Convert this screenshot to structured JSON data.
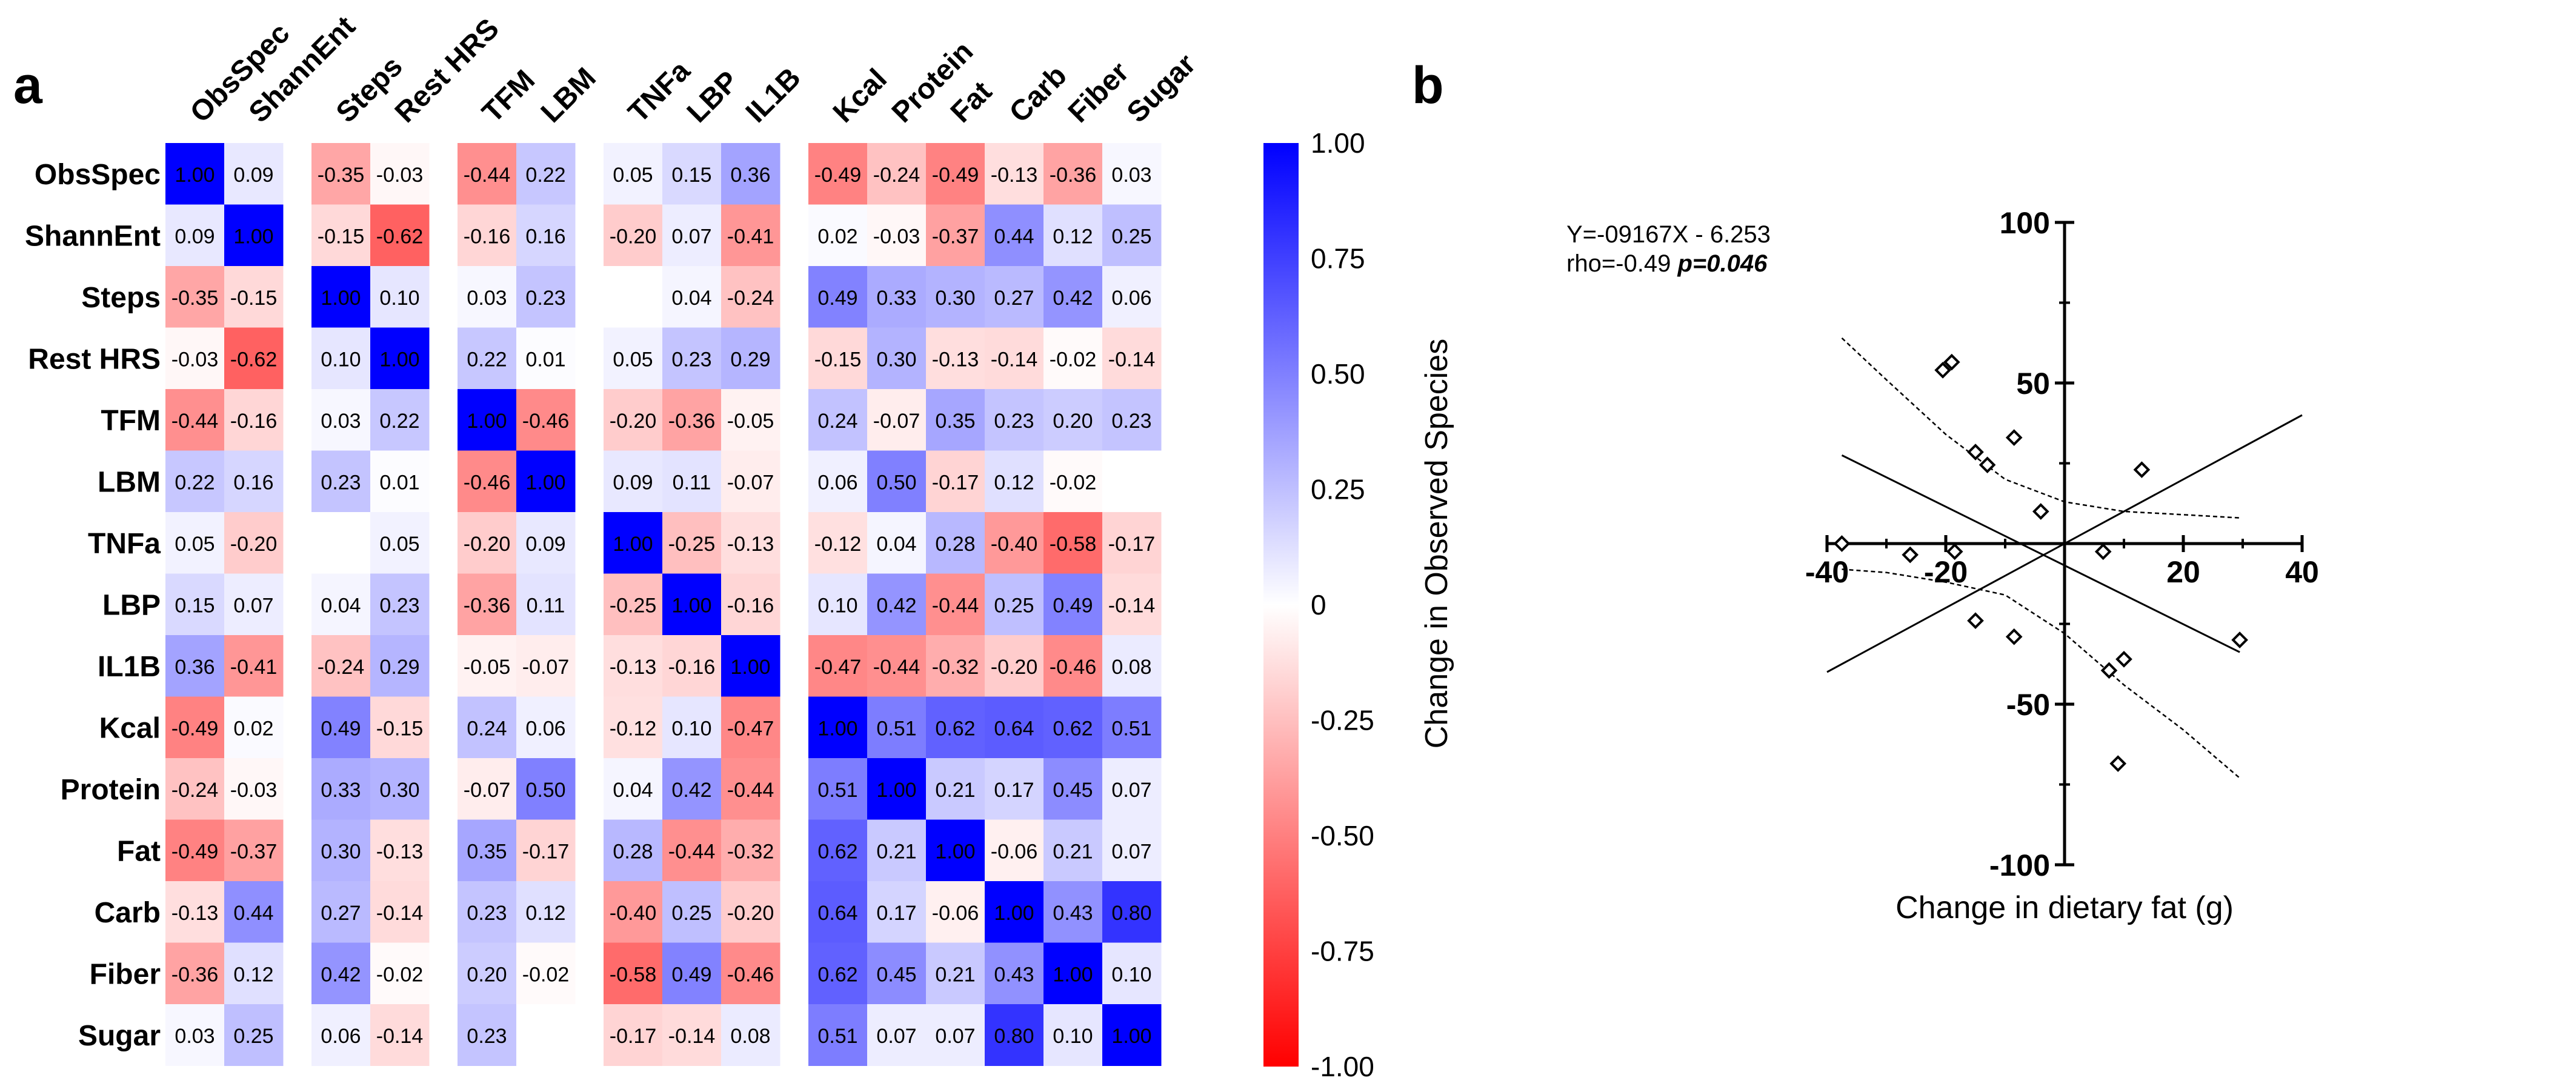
{
  "panels": {
    "a_label": "a",
    "b_label": "b"
  },
  "chart_data": [
    {
      "type": "heatmap",
      "panel": "a",
      "variables": [
        "ObsSpec",
        "ShannEnt",
        "Steps",
        "Rest HRS",
        "TFM",
        "LBM",
        "TNFa",
        "LBP",
        "IL1B",
        "Kcal",
        "Protein",
        "Fat",
        "Carb",
        "Fiber",
        "Sugar"
      ],
      "groups": [
        [
          0,
          1
        ],
        [
          2,
          3
        ],
        [
          4,
          5
        ],
        [
          6,
          7,
          8
        ],
        [
          9,
          10,
          11,
          12,
          13,
          14
        ]
      ],
      "matrix": [
        [
          "1.00",
          "0.09",
          "-0.35",
          "-0.03",
          "-0.44",
          "0.22",
          "0.05",
          "0.15",
          "0.36",
          "-0.49",
          "-0.24",
          "-0.49",
          "-0.13",
          "-0.36",
          "0.03"
        ],
        [
          "0.09",
          "1.00",
          "-0.15",
          "-0.62",
          "-0.16",
          "0.16",
          "-0.20",
          "0.07",
          "-0.41",
          "0.02",
          "-0.03",
          "-0.37",
          "0.44",
          "0.12",
          "0.25"
        ],
        [
          "-0.35",
          "-0.15",
          "1.00",
          "0.10",
          "0.03",
          "0.23",
          "",
          "0.04",
          "-0.24",
          "0.49",
          "0.33",
          "0.30",
          "0.27",
          "0.42",
          "0.06"
        ],
        [
          "-0.03",
          "-0.62",
          "0.10",
          "1.00",
          "0.22",
          "0.01",
          "0.05",
          "0.23",
          "0.29",
          "-0.15",
          "0.30",
          "-0.13",
          "-0.14",
          "-0.02",
          "-0.14"
        ],
        [
          "-0.44",
          "-0.16",
          "0.03",
          "0.22",
          "1.00",
          "-0.46",
          "-0.20",
          "-0.36",
          "-0.05",
          "0.24",
          "-0.07",
          "0.35",
          "0.23",
          "0.20",
          "0.23"
        ],
        [
          "0.22",
          "0.16",
          "0.23",
          "0.01",
          "-0.46",
          "1.00",
          "0.09",
          "0.11",
          "-0.07",
          "0.06",
          "0.50",
          "-0.17",
          "0.12",
          "-0.02",
          ""
        ],
        [
          "0.05",
          "-0.20",
          "",
          "0.05",
          "-0.20",
          "0.09",
          "1.00",
          "-0.25",
          "-0.13",
          "-0.12",
          "0.04",
          "0.28",
          "-0.40",
          "-0.58",
          "-0.17"
        ],
        [
          "0.15",
          "0.07",
          "0.04",
          "0.23",
          "-0.36",
          "0.11",
          "-0.25",
          "1.00",
          "-0.16",
          "0.10",
          "0.42",
          "-0.44",
          "0.25",
          "0.49",
          "-0.14"
        ],
        [
          "0.36",
          "-0.41",
          "-0.24",
          "0.29",
          "-0.05",
          "-0.07",
          "-0.13",
          "-0.16",
          "1.00",
          "-0.47",
          "-0.44",
          "-0.32",
          "-0.20",
          "-0.46",
          "0.08"
        ],
        [
          "-0.49",
          "0.02",
          "0.49",
          "-0.15",
          "0.24",
          "0.06",
          "-0.12",
          "0.10",
          "-0.47",
          "1.00",
          "0.51",
          "0.62",
          "0.64",
          "0.62",
          "0.51"
        ],
        [
          "-0.24",
          "-0.03",
          "0.33",
          "0.30",
          "-0.07",
          "0.50",
          "0.04",
          "0.42",
          "-0.44",
          "0.51",
          "1.00",
          "0.21",
          "0.17",
          "0.45",
          "0.07"
        ],
        [
          "-0.49",
          "-0.37",
          "0.30",
          "-0.13",
          "0.35",
          "-0.17",
          "0.28",
          "-0.44",
          "-0.32",
          "0.62",
          "0.21",
          "1.00",
          "-0.06",
          "0.21",
          "0.07"
        ],
        [
          "-0.13",
          "0.44",
          "0.27",
          "-0.14",
          "0.23",
          "0.12",
          "-0.40",
          "0.25",
          "-0.20",
          "0.64",
          "0.17",
          "-0.06",
          "1.00",
          "0.43",
          "0.80"
        ],
        [
          "-0.36",
          "0.12",
          "0.42",
          "-0.02",
          "0.20",
          "-0.02",
          "-0.58",
          "0.49",
          "-0.46",
          "0.62",
          "0.45",
          "0.21",
          "0.43",
          "1.00",
          "0.10"
        ],
        [
          "0.03",
          "0.25",
          "0.06",
          "-0.14",
          "0.23",
          "",
          "-0.17",
          "-0.14",
          "0.08",
          "0.51",
          "0.07",
          "0.07",
          "0.80",
          "0.10",
          "1.00"
        ]
      ],
      "colorbar": {
        "ticks": [
          "1.00",
          "0.75",
          "0.50",
          "0.25",
          "0",
          "-0.25",
          "-0.50",
          "-0.75",
          "-1.00"
        ],
        "min": -1,
        "max": 1,
        "color_max": "#0000ff",
        "color_mid": "#ffffff",
        "color_min": "#ff0000"
      }
    },
    {
      "type": "scatter",
      "panel": "b",
      "equation": "Y=-09167X - 6.253",
      "rho_text": "rho=-0.49 ",
      "p_text": "p=0.046",
      "xlabel": "Change in dietary fat (g)",
      "ylabel": "Change in Observed  Species",
      "xlim": [
        -40,
        40
      ],
      "ylim": [
        -100,
        100
      ],
      "xticks": [
        "-40",
        "-20",
        "20",
        "40"
      ],
      "yticks": [
        "100",
        "50",
        "-50",
        "-100"
      ],
      "points": [
        [
          -37.5,
          0
        ],
        [
          -26,
          -3.5
        ],
        [
          -20.5,
          54
        ],
        [
          -19,
          56.5
        ],
        [
          -18.5,
          -2.5
        ],
        [
          -15,
          28.5
        ],
        [
          -15,
          -24
        ],
        [
          -13,
          24.5
        ],
        [
          -8.5,
          33
        ],
        [
          -8.5,
          -29
        ],
        [
          -4,
          10
        ],
        [
          6.5,
          -2.5
        ],
        [
          7.5,
          -39.5
        ],
        [
          9,
          -68.5
        ],
        [
          10,
          -36
        ],
        [
          13,
          23
        ],
        [
          29.5,
          -30
        ]
      ],
      "regression_line": [
        [
          -37.5,
          27.5
        ],
        [
          29.5,
          -33.8
        ]
      ],
      "reference_line": [
        [
          -40,
          -40
        ],
        [
          40,
          40
        ]
      ],
      "ci_upper": [
        [
          -37.5,
          64
        ],
        [
          -30,
          51
        ],
        [
          -20,
          34
        ],
        [
          -10,
          20
        ],
        [
          0,
          13
        ],
        [
          10,
          10
        ],
        [
          20,
          9
        ],
        [
          29.5,
          8
        ]
      ],
      "ci_lower": [
        [
          -37.5,
          -8
        ],
        [
          -30,
          -9
        ],
        [
          -20,
          -12
        ],
        [
          -10,
          -16
        ],
        [
          0,
          -28
        ],
        [
          10,
          -44
        ],
        [
          20,
          -58
        ],
        [
          29.5,
          -73
        ]
      ]
    }
  ]
}
